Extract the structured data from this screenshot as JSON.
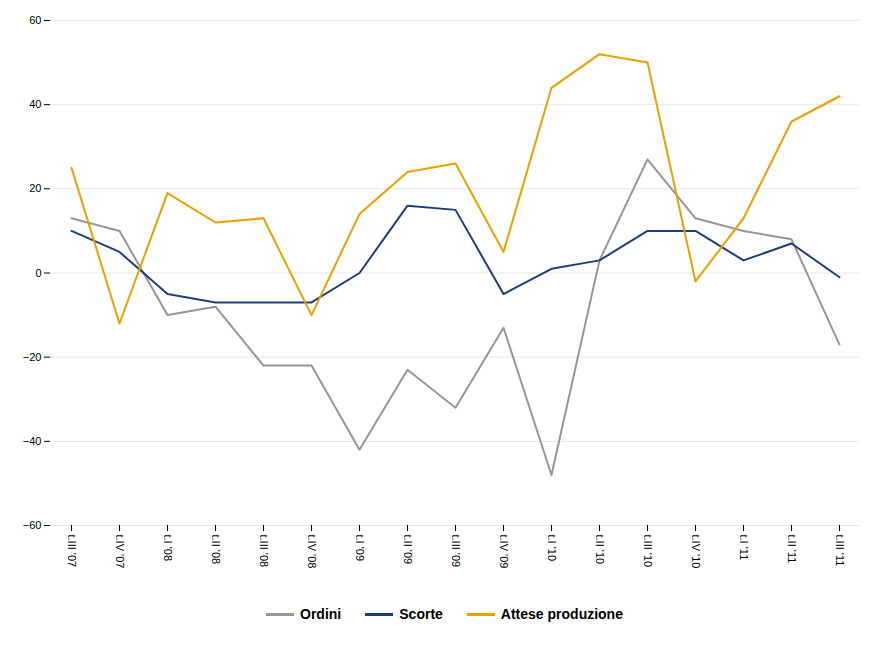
{
  "chart_data": {
    "type": "line",
    "categories": [
      "t.III '07",
      "t.IV '07",
      "t.I '08",
      "t.II '08",
      "t.III '08",
      "t.IV '08",
      "t.I '09",
      "t.II '09",
      "t.III '09",
      "t.IV '09",
      "t.I '10",
      "t.II '10",
      "t.III '10",
      "t.IV '10",
      "t.I '11",
      "t.II '11",
      "t.III '11"
    ],
    "series": [
      {
        "name": "Ordini",
        "color": "#969696",
        "values": [
          13,
          10,
          -10,
          -8,
          -22,
          -22,
          -42,
          -23,
          -32,
          -13,
          -48,
          3,
          27,
          13,
          10,
          8,
          -17
        ]
      },
      {
        "name": "Scorte",
        "color": "#1f3d7a",
        "values": [
          10,
          5,
          -5,
          -7,
          -7,
          -7,
          0,
          16,
          15,
          -5,
          1,
          3,
          10,
          10,
          3,
          7,
          -1
        ]
      },
      {
        "name": "Attese produzione",
        "color": "#e8a000",
        "values": [
          25,
          -12,
          19,
          12,
          13,
          -10,
          14,
          24,
          26,
          5,
          44,
          52,
          50,
          -2,
          13,
          36,
          42
        ]
      }
    ],
    "ylim": [
      -60,
      60
    ],
    "yticks": [
      -60,
      -40,
      -20,
      0,
      20,
      40,
      60
    ],
    "grid": true,
    "legend": "bottom"
  }
}
